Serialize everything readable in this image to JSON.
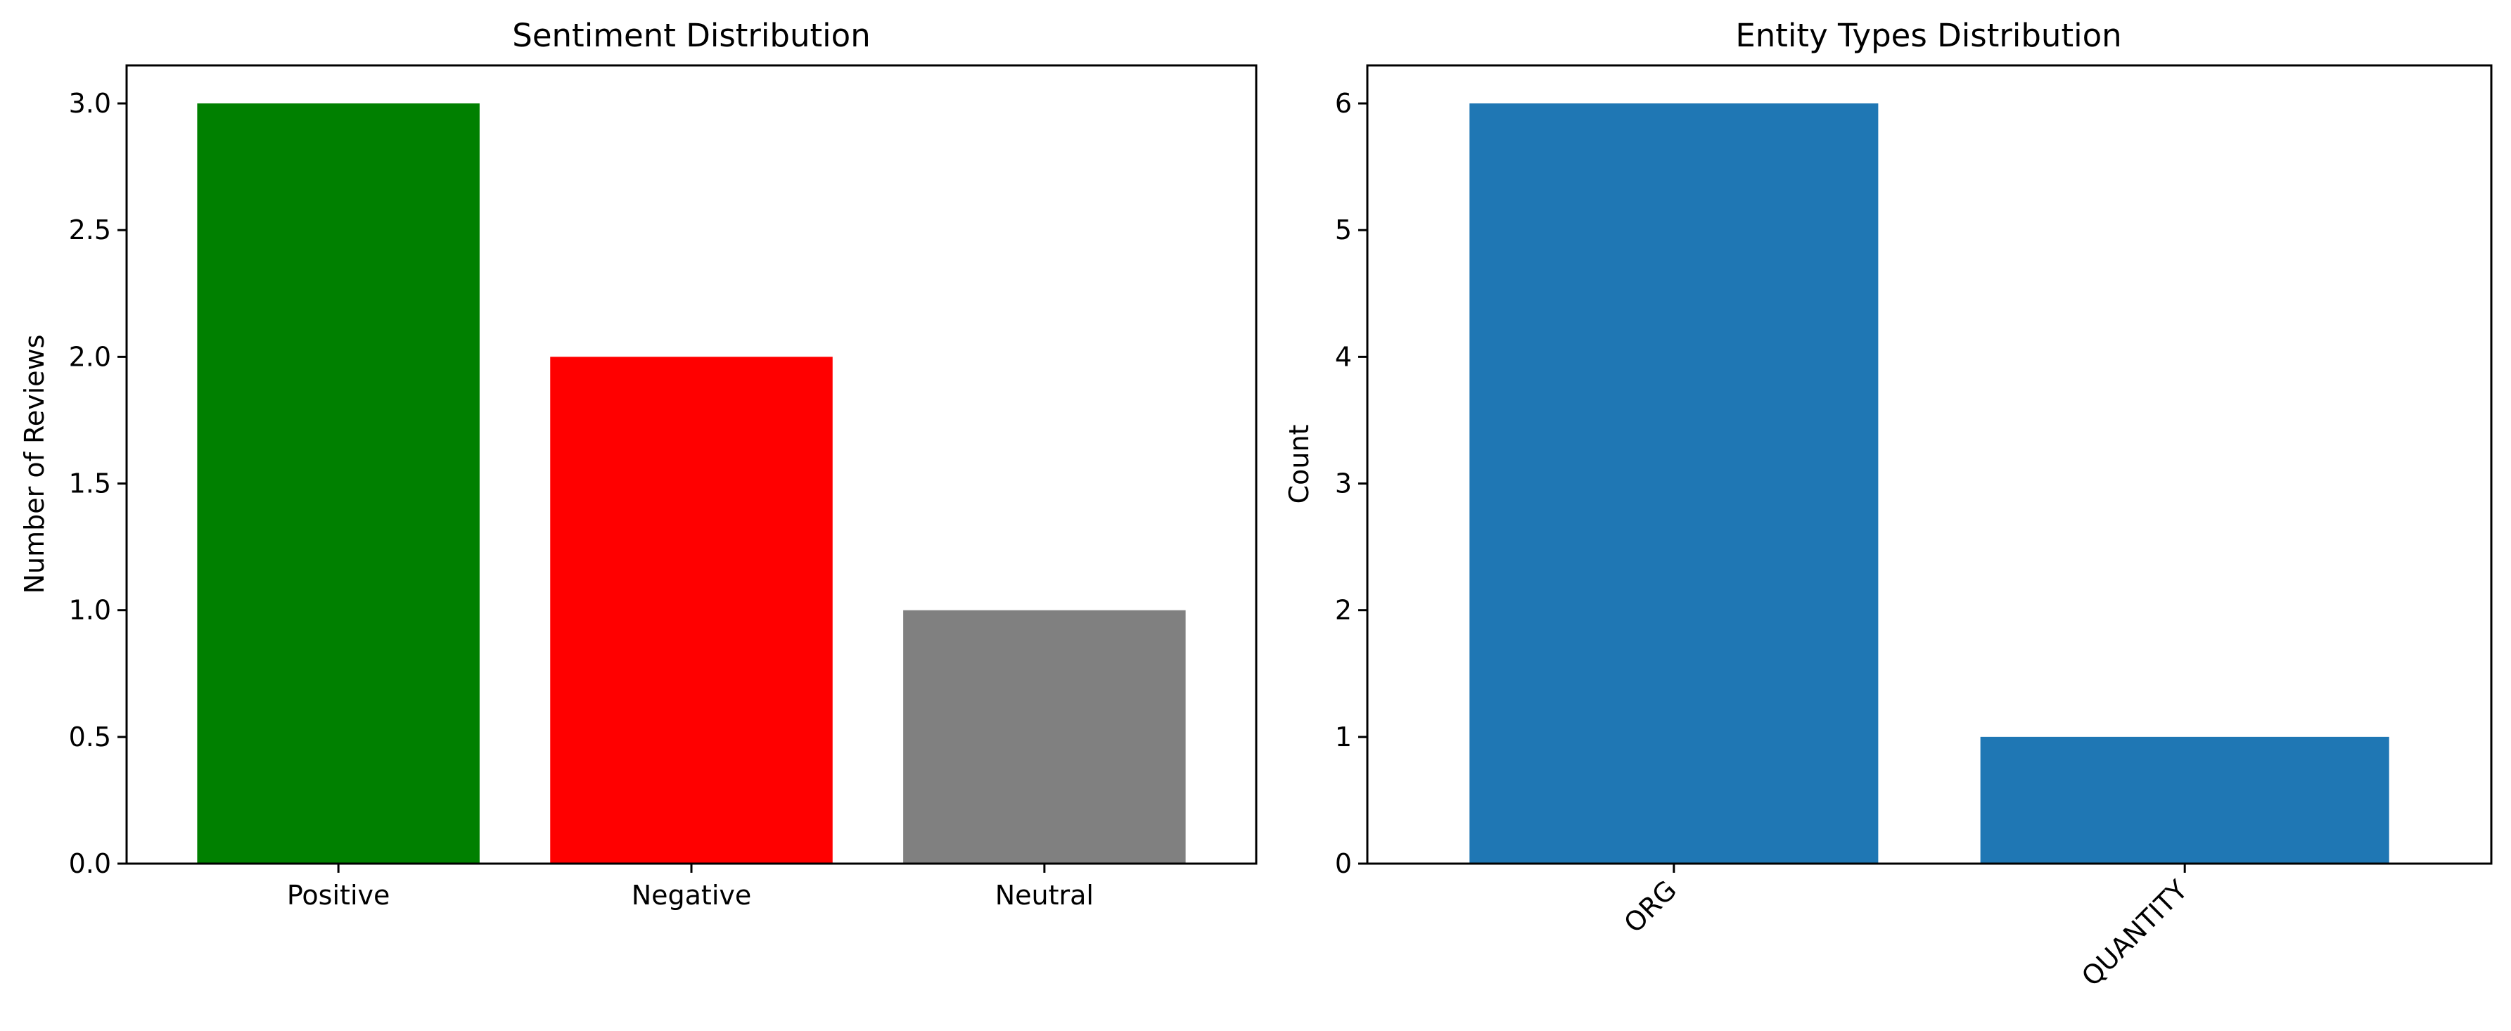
{
  "chart_data": [
    {
      "type": "bar",
      "title": "Sentiment Distribution",
      "xlabel": "",
      "ylabel": "Number of Reviews",
      "categories": [
        "Positive",
        "Negative",
        "Neutral"
      ],
      "values": [
        3,
        2,
        1
      ],
      "colors": [
        "#008000",
        "#ff0000",
        "#808080"
      ],
      "ylim": [
        0,
        3.15
      ],
      "yticks": [
        "0.0",
        "0.5",
        "1.0",
        "1.5",
        "2.0",
        "2.5",
        "3.0"
      ],
      "ytick_values": [
        0,
        0.5,
        1,
        1.5,
        2,
        2.5,
        3
      ],
      "xtick_rotation": 0,
      "grid": false,
      "legend": "none"
    },
    {
      "type": "bar",
      "title": "Entity Types Distribution",
      "xlabel": "",
      "ylabel": "Count",
      "categories": [
        "ORG",
        "QUANTITY"
      ],
      "values": [
        6,
        1
      ],
      "colors": [
        "#1f77b4",
        "#1f77b4"
      ],
      "ylim": [
        0,
        6.3
      ],
      "yticks": [
        "0",
        "1",
        "2",
        "3",
        "4",
        "5",
        "6"
      ],
      "ytick_values": [
        0,
        1,
        2,
        3,
        4,
        5,
        6
      ],
      "xtick_rotation": -45,
      "grid": false,
      "legend": "none"
    }
  ]
}
